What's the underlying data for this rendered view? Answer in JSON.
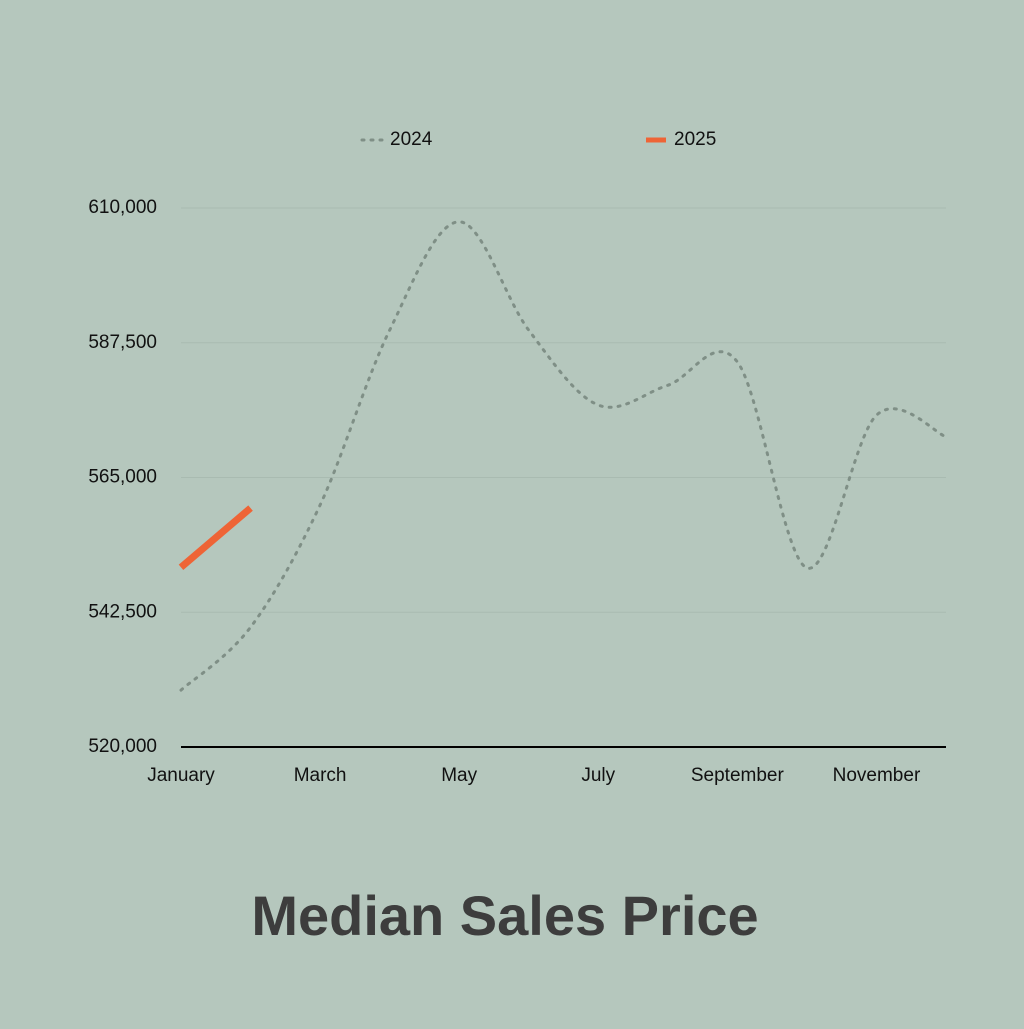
{
  "chart_data": {
    "type": "line",
    "title": "Median Sales Price",
    "categories": [
      "January",
      null,
      "March",
      null,
      "May",
      null,
      "July",
      null,
      "September",
      null,
      "November",
      null
    ],
    "series": [
      {
        "name": "2024",
        "color": "#7f8f86",
        "style": "dotted",
        "values": [
          529500,
          540000,
          560400,
          589600,
          607700,
          589600,
          577100,
          580400,
          584300,
          549900,
          575400,
          571800
        ]
      },
      {
        "name": "2025",
        "color": "#ee6436",
        "style": "solid",
        "values": [
          550000,
          559900,
          null,
          null,
          null,
          null,
          null,
          null,
          null,
          null,
          null,
          null
        ]
      }
    ],
    "ylim": [
      520000,
      610000
    ],
    "yticks": [
      {
        "value": 520000,
        "label": "520,000"
      },
      {
        "value": 542500,
        "label": "542,500"
      },
      {
        "value": 565000,
        "label": "565,000"
      },
      {
        "value": 587500,
        "label": "587,500"
      },
      {
        "value": 610000,
        "label": "610,000"
      }
    ],
    "grid": true,
    "legend": "top"
  }
}
